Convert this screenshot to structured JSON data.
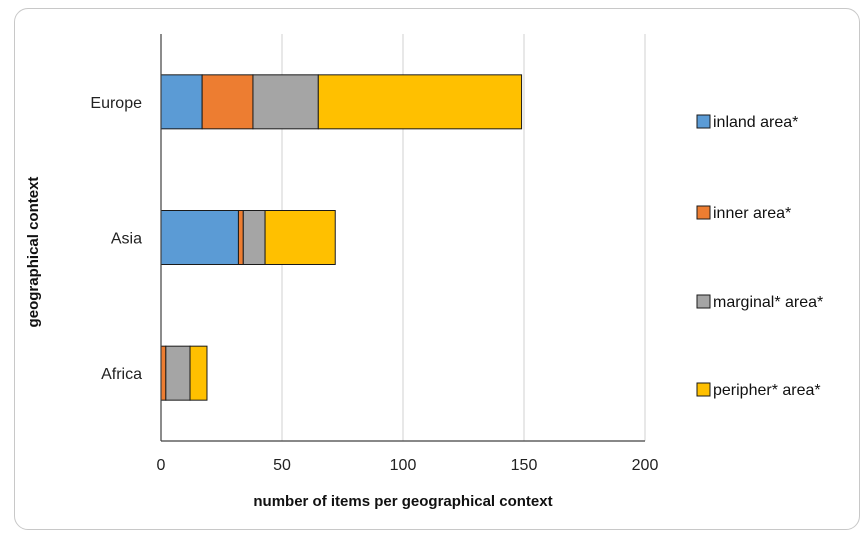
{
  "chart_data": {
    "type": "bar",
    "orientation": "horizontal",
    "stacked": true,
    "categories": [
      "Europe",
      "Asia",
      "Africa"
    ],
    "series": [
      {
        "name": "inland area*",
        "color": "#5b9bd5",
        "values": [
          17,
          32,
          0
        ]
      },
      {
        "name": "inner area*",
        "color": "#ed7d31",
        "values": [
          21,
          2,
          2
        ]
      },
      {
        "name": "marginal* area*",
        "color": "#a5a5a5",
        "values": [
          27,
          9,
          10
        ]
      },
      {
        "name": "peripher* area*",
        "color": "#ffc000",
        "values": [
          84,
          29,
          7
        ]
      }
    ],
    "xlabel": "number of items per geographical context",
    "ylabel": "geographical context",
    "xlim": [
      0,
      200
    ],
    "xticks": [
      0,
      50,
      100,
      150,
      200
    ],
    "grid": "vertical",
    "legend_position": "right"
  }
}
